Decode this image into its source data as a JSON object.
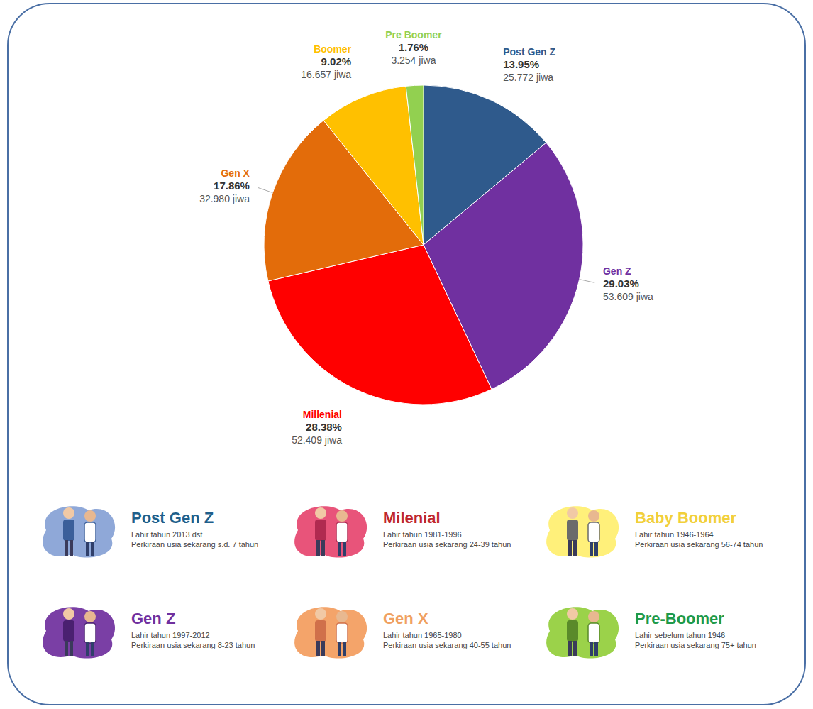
{
  "chart_data": {
    "type": "pie",
    "categories": [
      "Post Gen Z",
      "Gen Z",
      "Millenial",
      "Gen X",
      "Boomer",
      "Pre Boomer"
    ],
    "values": [
      13.95,
      29.03,
      28.38,
      17.86,
      9.02,
      1.76
    ],
    "value_labels": [
      "13.95%",
      "29.03%",
      "28.38%",
      "17.86%",
      "9.02%",
      "1.76%"
    ],
    "counts": [
      25772,
      53609,
      52409,
      32980,
      16657,
      3254
    ],
    "count_labels": [
      "25.772 jiwa",
      "53.609 jiwa",
      "52.409 jiwa",
      "32.980 jiwa",
      "16.657 jiwa",
      "3.254 jiwa"
    ],
    "colors": [
      "#2f5a8c",
      "#7030a0",
      "#ff0000",
      "#e36c0a",
      "#ffc000",
      "#92d050"
    ],
    "data_labels": true
  },
  "generations": [
    {
      "title": "Post Gen Z",
      "color": "#1f5f8b",
      "born": "Lahir tahun 2013 dst",
      "age": "Perkiraan usia sekarang s.d. 7 tahun"
    },
    {
      "title": "Milenial",
      "color": "#c0272d",
      "born": "Lahir tahun 1981-1996",
      "age": "Perkiraan usia sekarang 24-39 tahun"
    },
    {
      "title": "Baby Boomer",
      "color": "#f2d03a",
      "born": "Lahir tahun 1946-1964",
      "age": "Perkiraan usia sekarang 56-74 tahun"
    },
    {
      "title": "Gen Z",
      "color": "#7030a0",
      "born": "Lahir tahun 1997-2012",
      "age": "Perkiraan usia sekarang 8-23 tahun"
    },
    {
      "title": "Gen X",
      "color": "#f0a060",
      "born": "Lahir tahun 1965-1980",
      "age": "Perkiraan usia sekarang 40-55 tahun"
    },
    {
      "title": "Pre-Boomer",
      "color": "#1e9a4a",
      "born": "Lahir sebelum tahun 1946",
      "age": "Perkiraan usia sekarang 75+ tahun"
    }
  ]
}
